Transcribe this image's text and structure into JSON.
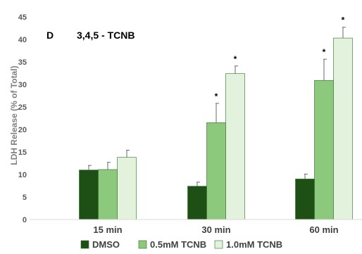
{
  "chart_data": {
    "type": "bar",
    "panel_label": "D",
    "title": "3,4,5 - TCNB",
    "ylabel": "LDH Release (% of Total)",
    "xlabel": "",
    "ylim": [
      0,
      45
    ],
    "yticks": [
      0,
      5,
      10,
      15,
      20,
      25,
      30,
      35,
      40,
      45
    ],
    "grid": false,
    "legend_position": "bottom",
    "categories": [
      "15 min",
      "30 min",
      "60 min"
    ],
    "series": [
      {
        "name": "DMSO",
        "color": "#1e5016",
        "values": [
          11.0,
          7.4,
          9.0
        ],
        "errors": [
          1.0,
          0.9,
          1.1
        ],
        "significant": [
          false,
          false,
          false
        ]
      },
      {
        "name": "0.5mM TCNB",
        "color": "#8dc97d",
        "values": [
          11.1,
          21.5,
          30.9
        ],
        "errors": [
          1.6,
          4.3,
          4.7
        ],
        "significant": [
          false,
          true,
          true
        ]
      },
      {
        "name": "1.0mM TCNB",
        "color": "#e2f2dc",
        "values": [
          13.8,
          32.4,
          40.3
        ],
        "errors": [
          1.6,
          1.7,
          2.4
        ],
        "significant": [
          false,
          true,
          true
        ]
      }
    ],
    "annotation_symbol": "*"
  }
}
